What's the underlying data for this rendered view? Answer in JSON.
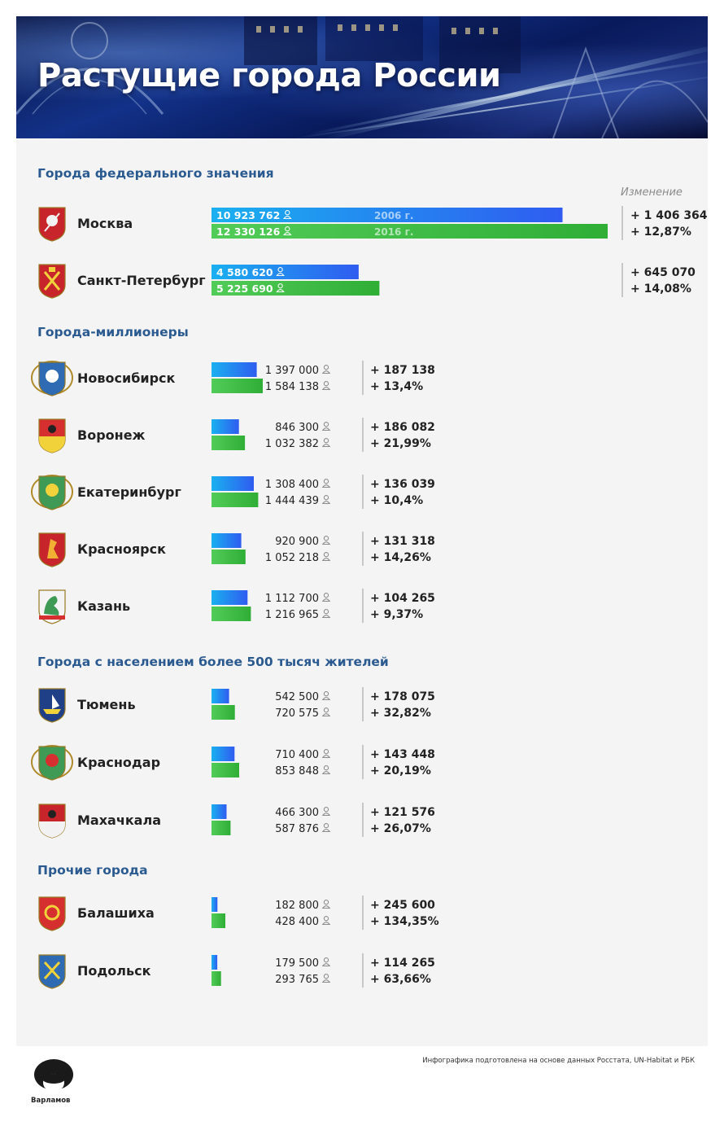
{
  "title": "Растущие города России",
  "change_header": "Изменение",
  "footer": {
    "source": "Инфографика подготовлена на основе данных Росстата, UN-Habitat и РБК",
    "brand": "Варламов"
  },
  "colors": {
    "bar_2006": "#2f5cf0",
    "bar_2006_light": "#1ab0f0",
    "bar_2016": "#2fae36",
    "bar_2016_light": "#52cc58",
    "section_title": "#2a5a8f",
    "panel_bg": "#f4f4f4"
  },
  "chart_data": {
    "type": "bar",
    "orientation": "horizontal",
    "units": "population",
    "series_years": [
      "2006 г.",
      "2016 г."
    ],
    "sections": [
      {
        "title": "Города федерального значения",
        "cities": [
          {
            "name": "Москва",
            "icon": "moscow-coat-of-arms-icon",
            "pop_2006": 10923762,
            "pop_2016": 12330126,
            "pop_2006_label": "10 923 762",
            "pop_2016_label": "12 330 126",
            "change_abs": "+ 1 406 364",
            "change_pct": "+ 12,87%"
          },
          {
            "name": "Санкт-Петербург",
            "icon": "saint-petersburg-coat-of-arms-icon",
            "pop_2006": 4580620,
            "pop_2016": 5225690,
            "pop_2006_label": "4 580 620",
            "pop_2016_label": "5 225 690",
            "change_abs": "+ 645 070",
            "change_pct": "+ 14,08%"
          }
        ]
      },
      {
        "title": "Города-миллионеры",
        "cities": [
          {
            "name": "Новосибирск",
            "icon": "novosibirsk-coat-of-arms-icon",
            "pop_2006": 1397000,
            "pop_2016": 1584138,
            "pop_2006_label": "1 397 000",
            "pop_2016_label": "1 584 138",
            "change_abs": "+ 187 138",
            "change_pct": "+ 13,4%"
          },
          {
            "name": "Воронеж",
            "icon": "voronezh-coat-of-arms-icon",
            "pop_2006": 846300,
            "pop_2016": 1032382,
            "pop_2006_label": "846 300",
            "pop_2016_label": "1 032 382",
            "change_abs": "+ 186 082",
            "change_pct": "+ 21,99%"
          },
          {
            "name": "Екатеринбург",
            "icon": "yekaterinburg-coat-of-arms-icon",
            "pop_2006": 1308400,
            "pop_2016": 1444439,
            "pop_2006_label": "1 308 400",
            "pop_2016_label": "1 444 439",
            "change_abs": "+ 136 039",
            "change_pct": "+ 10,4%"
          },
          {
            "name": "Красноярск",
            "icon": "krasnoyarsk-coat-of-arms-icon",
            "pop_2006": 920900,
            "pop_2016": 1052218,
            "pop_2006_label": "920 900",
            "pop_2016_label": "1 052 218",
            "change_abs": "+ 131 318",
            "change_pct": "+ 14,26%"
          },
          {
            "name": "Казань",
            "icon": "kazan-coat-of-arms-icon",
            "pop_2006": 1112700,
            "pop_2016": 1216965,
            "pop_2006_label": "1 112 700",
            "pop_2016_label": "1 216 965",
            "change_abs": "+ 104 265",
            "change_pct": "+ 9,37%"
          }
        ]
      },
      {
        "title": "Города с населением более 500 тысяч жителей",
        "cities": [
          {
            "name": "Тюмень",
            "icon": "tyumen-coat-of-arms-icon",
            "pop_2006": 542500,
            "pop_2016": 720575,
            "pop_2006_label": "542 500",
            "pop_2016_label": "720 575",
            "change_abs": "+ 178 075",
            "change_pct": "+ 32,82%"
          },
          {
            "name": "Краснодар",
            "icon": "krasnodar-coat-of-arms-icon",
            "pop_2006": 710400,
            "pop_2016": 853848,
            "pop_2006_label": "710 400",
            "pop_2016_label": "853 848",
            "change_abs": "+ 143 448",
            "change_pct": "+ 20,19%"
          },
          {
            "name": "Махачкала",
            "icon": "makhachkala-coat-of-arms-icon",
            "pop_2006": 466300,
            "pop_2016": 587876,
            "pop_2006_label": "466 300",
            "pop_2016_label": "587 876",
            "change_abs": "+ 121 576",
            "change_pct": "+ 26,07%"
          }
        ]
      },
      {
        "title": "Прочие города",
        "cities": [
          {
            "name": "Балашиха",
            "icon": "balashikha-coat-of-arms-icon",
            "pop_2006": 182800,
            "pop_2016": 428400,
            "pop_2006_label": "182 800",
            "pop_2016_label": "428 400",
            "change_abs": "+ 245 600",
            "change_pct": "+ 134,35%"
          },
          {
            "name": "Подольск",
            "icon": "podolsk-coat-of-arms-icon",
            "pop_2006": 179500,
            "pop_2016": 293765,
            "pop_2006_label": "179 500",
            "pop_2016_label": "293 765",
            "change_abs": "+ 114 265",
            "change_pct": "+ 63,66%"
          }
        ]
      }
    ]
  }
}
